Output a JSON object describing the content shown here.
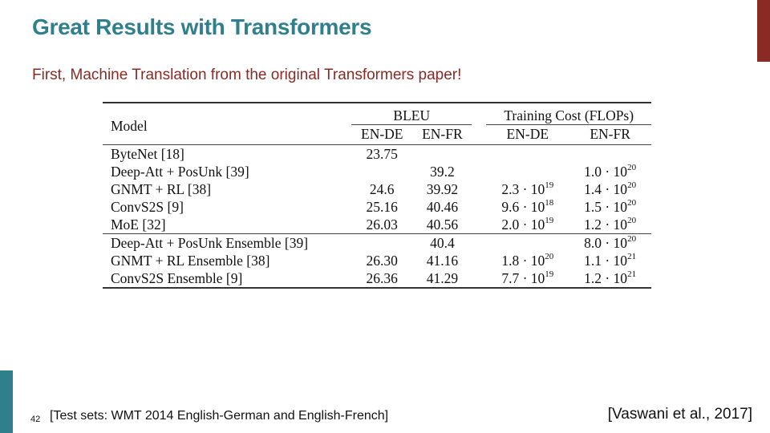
{
  "slide": {
    "title": "Great Results with Transformers",
    "subtitle": "First, Machine Translation from the original Transformers paper!",
    "page_number": "42",
    "footnote": "[Test sets: WMT 2014 English-German and English-French]",
    "citation": "[Vaswani et al., 2017]",
    "colors": {
      "title": "#2f7f8c",
      "subtitle": "#8b2a24",
      "accent_top": "#8b2a24",
      "accent_bottom": "#2f7f8c"
    }
  },
  "table": {
    "header": {
      "model": "Model",
      "bleu": "BLEU",
      "cost": "Training Cost (FLOPs)",
      "bleu_en_de": "EN-DE",
      "bleu_en_fr": "EN-FR",
      "cost_en_de": "EN-DE",
      "cost_en_fr": "EN-FR"
    },
    "rows": [
      {
        "model": "ByteNet [18]",
        "bleu_de": "23.75",
        "bleu_fr": "",
        "cost_de": "",
        "cost_de_exp": "",
        "cost_fr": "",
        "cost_fr_exp": ""
      },
      {
        "model": "Deep-Att + PosUnk [39]",
        "bleu_de": "",
        "bleu_fr": "39.2",
        "cost_de": "",
        "cost_de_exp": "",
        "cost_fr": "1.0 · 10",
        "cost_fr_exp": "20"
      },
      {
        "model": "GNMT + RL [38]",
        "bleu_de": "24.6",
        "bleu_fr": "39.92",
        "cost_de": "2.3 · 10",
        "cost_de_exp": "19",
        "cost_fr": "1.4 · 10",
        "cost_fr_exp": "20"
      },
      {
        "model": "ConvS2S [9]",
        "bleu_de": "25.16",
        "bleu_fr": "40.46",
        "cost_de": "9.6 · 10",
        "cost_de_exp": "18",
        "cost_fr": "1.5 · 10",
        "cost_fr_exp": "20"
      },
      {
        "model": "MoE [32]",
        "bleu_de": "26.03",
        "bleu_fr": "40.56",
        "cost_de": "2.0 · 10",
        "cost_de_exp": "19",
        "cost_fr": "1.2 · 10",
        "cost_fr_exp": "20"
      },
      {
        "model": "Deep-Att + PosUnk Ensemble [39]",
        "bleu_de": "",
        "bleu_fr": "40.4",
        "cost_de": "",
        "cost_de_exp": "",
        "cost_fr": "8.0 · 10",
        "cost_fr_exp": "20"
      },
      {
        "model": "GNMT + RL Ensemble [38]",
        "bleu_de": "26.30",
        "bleu_fr": "41.16",
        "cost_de": "1.8 · 10",
        "cost_de_exp": "20",
        "cost_fr": "1.1 · 10",
        "cost_fr_exp": "21"
      },
      {
        "model": "ConvS2S Ensemble [9]",
        "bleu_de": "26.36",
        "bleu_fr": "41.29",
        "cost_de": "7.7 · 10",
        "cost_de_exp": "19",
        "cost_fr": "1.2 · 10",
        "cost_fr_exp": "21"
      }
    ]
  }
}
